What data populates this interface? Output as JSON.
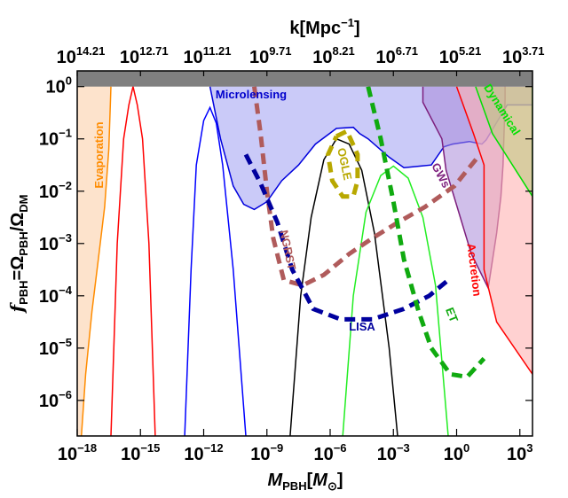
{
  "chart_data": {
    "type": "line",
    "title": "",
    "xlabel": "M_PBH[M_⊙]",
    "xlabel_parts": {
      "main": "M",
      "sub": "PBH",
      "bracket_open": "[",
      "unit": "M",
      "unit_sub": "⊙",
      "bracket_close": "]"
    },
    "ylabel": "f_PBH=Ω_PBH/Ω_DM",
    "ylabel_parts": {
      "f": "f",
      "f_sub": "PBH",
      "eq": "=Ω",
      "num_sub": "PBH",
      "slash": "/Ω",
      "den_sub": "DM"
    },
    "top_xlabel": "k[Mpc^-1]",
    "top_xlabel_parts": {
      "main": "k[Mpc",
      "sup": "−1",
      "close": "]"
    },
    "x_scale": "log",
    "y_scale": "log",
    "xlim_log10": [
      -18,
      3.6
    ],
    "ylim_log10": [
      -6.68,
      0.3
    ],
    "x_ticks": [
      {
        "exp": -18,
        "label": "10",
        "sup": "−18"
      },
      {
        "exp": -15,
        "label": "10",
        "sup": "−15"
      },
      {
        "exp": -12,
        "label": "10",
        "sup": "−12"
      },
      {
        "exp": -9,
        "label": "10",
        "sup": "−9"
      },
      {
        "exp": -6,
        "label": "10",
        "sup": "−6"
      },
      {
        "exp": -3,
        "label": "10",
        "sup": "−3"
      },
      {
        "exp": 0,
        "label": "10",
        "sup": "0"
      },
      {
        "exp": 3,
        "label": "10",
        "sup": "3"
      }
    ],
    "y_ticks": [
      {
        "exp": 0,
        "label": "10",
        "sup": "0"
      },
      {
        "exp": -1,
        "label": "10",
        "sup": "−1"
      },
      {
        "exp": -2,
        "label": "10",
        "sup": "−2"
      },
      {
        "exp": -3,
        "label": "10",
        "sup": "−3"
      },
      {
        "exp": -4,
        "label": "10",
        "sup": "−4"
      },
      {
        "exp": -5,
        "label": "10",
        "sup": "−5"
      },
      {
        "exp": -6,
        "label": "10",
        "sup": "−6"
      }
    ],
    "top_ticks": [
      {
        "mass_exp": -18,
        "label": "10",
        "sup": "14.21"
      },
      {
        "mass_exp": -15,
        "label": "10",
        "sup": "12.71"
      },
      {
        "mass_exp": -12,
        "label": "10",
        "sup": "11.21"
      },
      {
        "mass_exp": -9,
        "label": "10",
        "sup": "9.71"
      },
      {
        "mass_exp": -6,
        "label": "10",
        "sup": "8.21"
      },
      {
        "mass_exp": -3,
        "label": "10",
        "sup": "6.71"
      },
      {
        "mass_exp": 0,
        "label": "10",
        "sup": "5.21"
      },
      {
        "mass_exp": 3,
        "label": "10",
        "sup": "3.71"
      }
    ],
    "regions": [
      {
        "name": "Evaporation",
        "fill": "#fde3cc",
        "stroke": "#ff8c00",
        "opacity": 1,
        "boundary_log10": [
          [
            -17.8,
            -6.68
          ],
          [
            -17.6,
            -5.5
          ],
          [
            -17.3,
            -4.3
          ],
          [
            -17.0,
            -3.3
          ],
          [
            -16.7,
            -2.3
          ],
          [
            -16.5,
            -1.2
          ],
          [
            -16.4,
            0
          ]
        ]
      },
      {
        "name": "Microlensing",
        "fill": "#b8b8f5",
        "stroke": "#0000dd",
        "opacity": 0.75,
        "boundary_log10": [
          [
            -11.7,
            0
          ],
          [
            -11.2,
            -1.0
          ],
          [
            -10.6,
            -1.9
          ],
          [
            -10.1,
            -2.25
          ],
          [
            -9.6,
            -2.35
          ],
          [
            -9.0,
            -2.2
          ],
          [
            -8.3,
            -1.8
          ],
          [
            -7.5,
            -1.5
          ],
          [
            -6.7,
            -1.1
          ],
          [
            -5.7,
            -0.8
          ],
          [
            -4.9,
            -0.78
          ],
          [
            -4.6,
            -0.9
          ],
          [
            -4.2,
            -1.0
          ],
          [
            -3.2,
            -1.35
          ],
          [
            -2.5,
            -1.55
          ],
          [
            -1.7,
            -1.52
          ],
          [
            -1.2,
            -1.5
          ],
          [
            -0.6,
            -1.15
          ],
          [
            -0.2,
            -1.1
          ],
          [
            0.6,
            -1.05
          ],
          [
            1.2,
            -1.1
          ],
          [
            1.4,
            -1.02
          ],
          [
            2.4,
            -0.35
          ],
          [
            3.6,
            -0.35
          ]
        ]
      },
      {
        "name": "GWs",
        "fill": "#a98bd8",
        "stroke": "#7d1f7d",
        "opacity": 0.55,
        "boundary_log10": [
          [
            -1.6,
            0
          ],
          [
            -1.6,
            -0.3
          ],
          [
            -0.7,
            -1.0
          ],
          [
            -0.5,
            -1.6
          ],
          [
            0.7,
            -3.2
          ],
          [
            1.5,
            -3.85
          ],
          [
            1.9,
            -2.8
          ],
          [
            2.1,
            -2.1
          ],
          [
            2.2,
            -1.5
          ],
          [
            2.3,
            -0.25
          ],
          [
            2.3,
            0
          ]
        ]
      },
      {
        "name": "Accretion",
        "fill": "#ffb3b3",
        "stroke": "#ff0000",
        "opacity": 0.6,
        "boundary_log10": [
          [
            0.0,
            0
          ],
          [
            0.8,
            -0.9
          ],
          [
            1.3,
            -1.5
          ],
          [
            1.3,
            -3.5
          ],
          [
            1.6,
            -4.0
          ],
          [
            1.9,
            -4.5
          ],
          [
            3.6,
            -5.5
          ],
          [
            3.6,
            0
          ]
        ]
      },
      {
        "name": "Dynamical",
        "fill": "#b9c97a",
        "stroke": "#00e000",
        "opacity": 0.55,
        "boundary_log10": [
          [
            0.9,
            0
          ],
          [
            1.7,
            -0.9
          ],
          [
            3.6,
            -2.1
          ],
          [
            3.6,
            0
          ]
        ]
      }
    ],
    "series": [
      {
        "name": "peak-red",
        "color": "#ff0000",
        "style": "solid",
        "points_log10": [
          [
            -16.4,
            -6.68
          ],
          [
            -16.1,
            -3.0
          ],
          [
            -15.8,
            -1.0
          ],
          [
            -15.55,
            -0.35
          ],
          [
            -15.35,
            0.0
          ],
          [
            -15.15,
            -0.35
          ],
          [
            -14.9,
            -1.0
          ],
          [
            -14.6,
            -3.0
          ],
          [
            -14.3,
            -6.68
          ]
        ]
      },
      {
        "name": "peak-blue",
        "color": "#0000ff",
        "style": "solid",
        "points_log10": [
          [
            -12.9,
            -6.68
          ],
          [
            -12.6,
            -3.5
          ],
          [
            -12.35,
            -1.5
          ],
          [
            -12.0,
            -0.65
          ],
          [
            -11.7,
            -0.4
          ],
          [
            -11.4,
            -0.7
          ],
          [
            -11.1,
            -1.5
          ],
          [
            -10.6,
            -3.5
          ],
          [
            -10.0,
            -6.68
          ]
        ]
      },
      {
        "name": "peak-black",
        "color": "#000000",
        "style": "solid",
        "points_log10": [
          [
            -7.9,
            -6.68
          ],
          [
            -7.4,
            -4.0
          ],
          [
            -6.9,
            -2.5
          ],
          [
            -6.3,
            -1.4
          ],
          [
            -5.7,
            -1.0
          ],
          [
            -5.1,
            -1.1
          ],
          [
            -4.5,
            -1.6
          ],
          [
            -3.9,
            -2.8
          ],
          [
            -3.2,
            -5.0
          ],
          [
            -2.8,
            -6.68
          ]
        ]
      },
      {
        "name": "peak-green",
        "color": "#22ee22",
        "style": "solid",
        "points_log10": [
          [
            -5.4,
            -6.68
          ],
          [
            -4.9,
            -4.0
          ],
          [
            -4.3,
            -2.4
          ],
          [
            -3.6,
            -1.7
          ],
          [
            -3.0,
            -1.52
          ],
          [
            -2.3,
            -1.75
          ],
          [
            -1.6,
            -2.5
          ],
          [
            -1.0,
            -3.8
          ],
          [
            -0.4,
            -6.68
          ]
        ]
      },
      {
        "name": "OGLE",
        "color": "#b8a800",
        "style": "dashed",
        "points_log10": [
          [
            -5.7,
            -0.95
          ],
          [
            -5.2,
            -0.85
          ],
          [
            -4.7,
            -1.3
          ],
          [
            -4.7,
            -1.8
          ],
          [
            -4.9,
            -2.1
          ],
          [
            -5.4,
            -2.1
          ],
          [
            -5.9,
            -1.8
          ],
          [
            -6.1,
            -1.3
          ],
          [
            -5.7,
            -0.95
          ]
        ]
      },
      {
        "name": "NGRST",
        "color": "#b05b5b",
        "style": "dashed",
        "points_log10": [
          [
            -9.6,
            0.0
          ],
          [
            -9.3,
            -0.9
          ],
          [
            -9.0,
            -2.0
          ],
          [
            -8.7,
            -2.9
          ],
          [
            -8.2,
            -3.7
          ],
          [
            -7.3,
            -3.8
          ],
          [
            -6.3,
            -3.6
          ],
          [
            -5.1,
            -3.2
          ],
          [
            -4.0,
            -2.9
          ],
          [
            -2.8,
            -2.6
          ],
          [
            -1.5,
            -2.3
          ],
          [
            -0.1,
            -1.9
          ],
          [
            0.5,
            -1.6
          ],
          [
            1.0,
            -1.35
          ]
        ]
      },
      {
        "name": "LISA",
        "color": "#00009e",
        "style": "dashed",
        "points_log10": [
          [
            -10.0,
            -1.3
          ],
          [
            -9.3,
            -1.85
          ],
          [
            -8.5,
            -2.6
          ],
          [
            -7.8,
            -3.5
          ],
          [
            -6.8,
            -4.25
          ],
          [
            -5.5,
            -4.45
          ],
          [
            -4.0,
            -4.45
          ],
          [
            -2.5,
            -4.25
          ],
          [
            -1.3,
            -4.0
          ],
          [
            -0.4,
            -3.7
          ]
        ]
      },
      {
        "name": "ET",
        "color": "#10aa10",
        "style": "dashed",
        "points_log10": [
          [
            -4.2,
            0.0
          ],
          [
            -3.6,
            -1.0
          ],
          [
            -3.0,
            -2.2
          ],
          [
            -2.5,
            -3.3
          ],
          [
            -1.8,
            -4.3
          ],
          [
            -1.2,
            -5.0
          ],
          [
            -0.3,
            -5.5
          ],
          [
            0.5,
            -5.55
          ],
          [
            1.3,
            -5.2
          ]
        ]
      }
    ],
    "annotations": [
      {
        "text": "Evaporation",
        "color": "#ff8c00"
      },
      {
        "text": "Microlensing",
        "color": "#0000cc"
      },
      {
        "text": "OGLE",
        "color": "#b8a800"
      },
      {
        "text": "NGRST",
        "color": "#b05b5b"
      },
      {
        "text": "LISA",
        "color": "#00009e"
      },
      {
        "text": "GWs",
        "color": "#7d1f7d"
      },
      {
        "text": "Dynamical",
        "color": "#00e000"
      },
      {
        "text": "Accretion",
        "color": "#ff0000"
      },
      {
        "text": "ET",
        "color": "#10aa10"
      }
    ],
    "excluded_band": {
      "color": "#808080",
      "from_log10": 0,
      "to_log10": 0.3
    },
    "grid": false
  }
}
